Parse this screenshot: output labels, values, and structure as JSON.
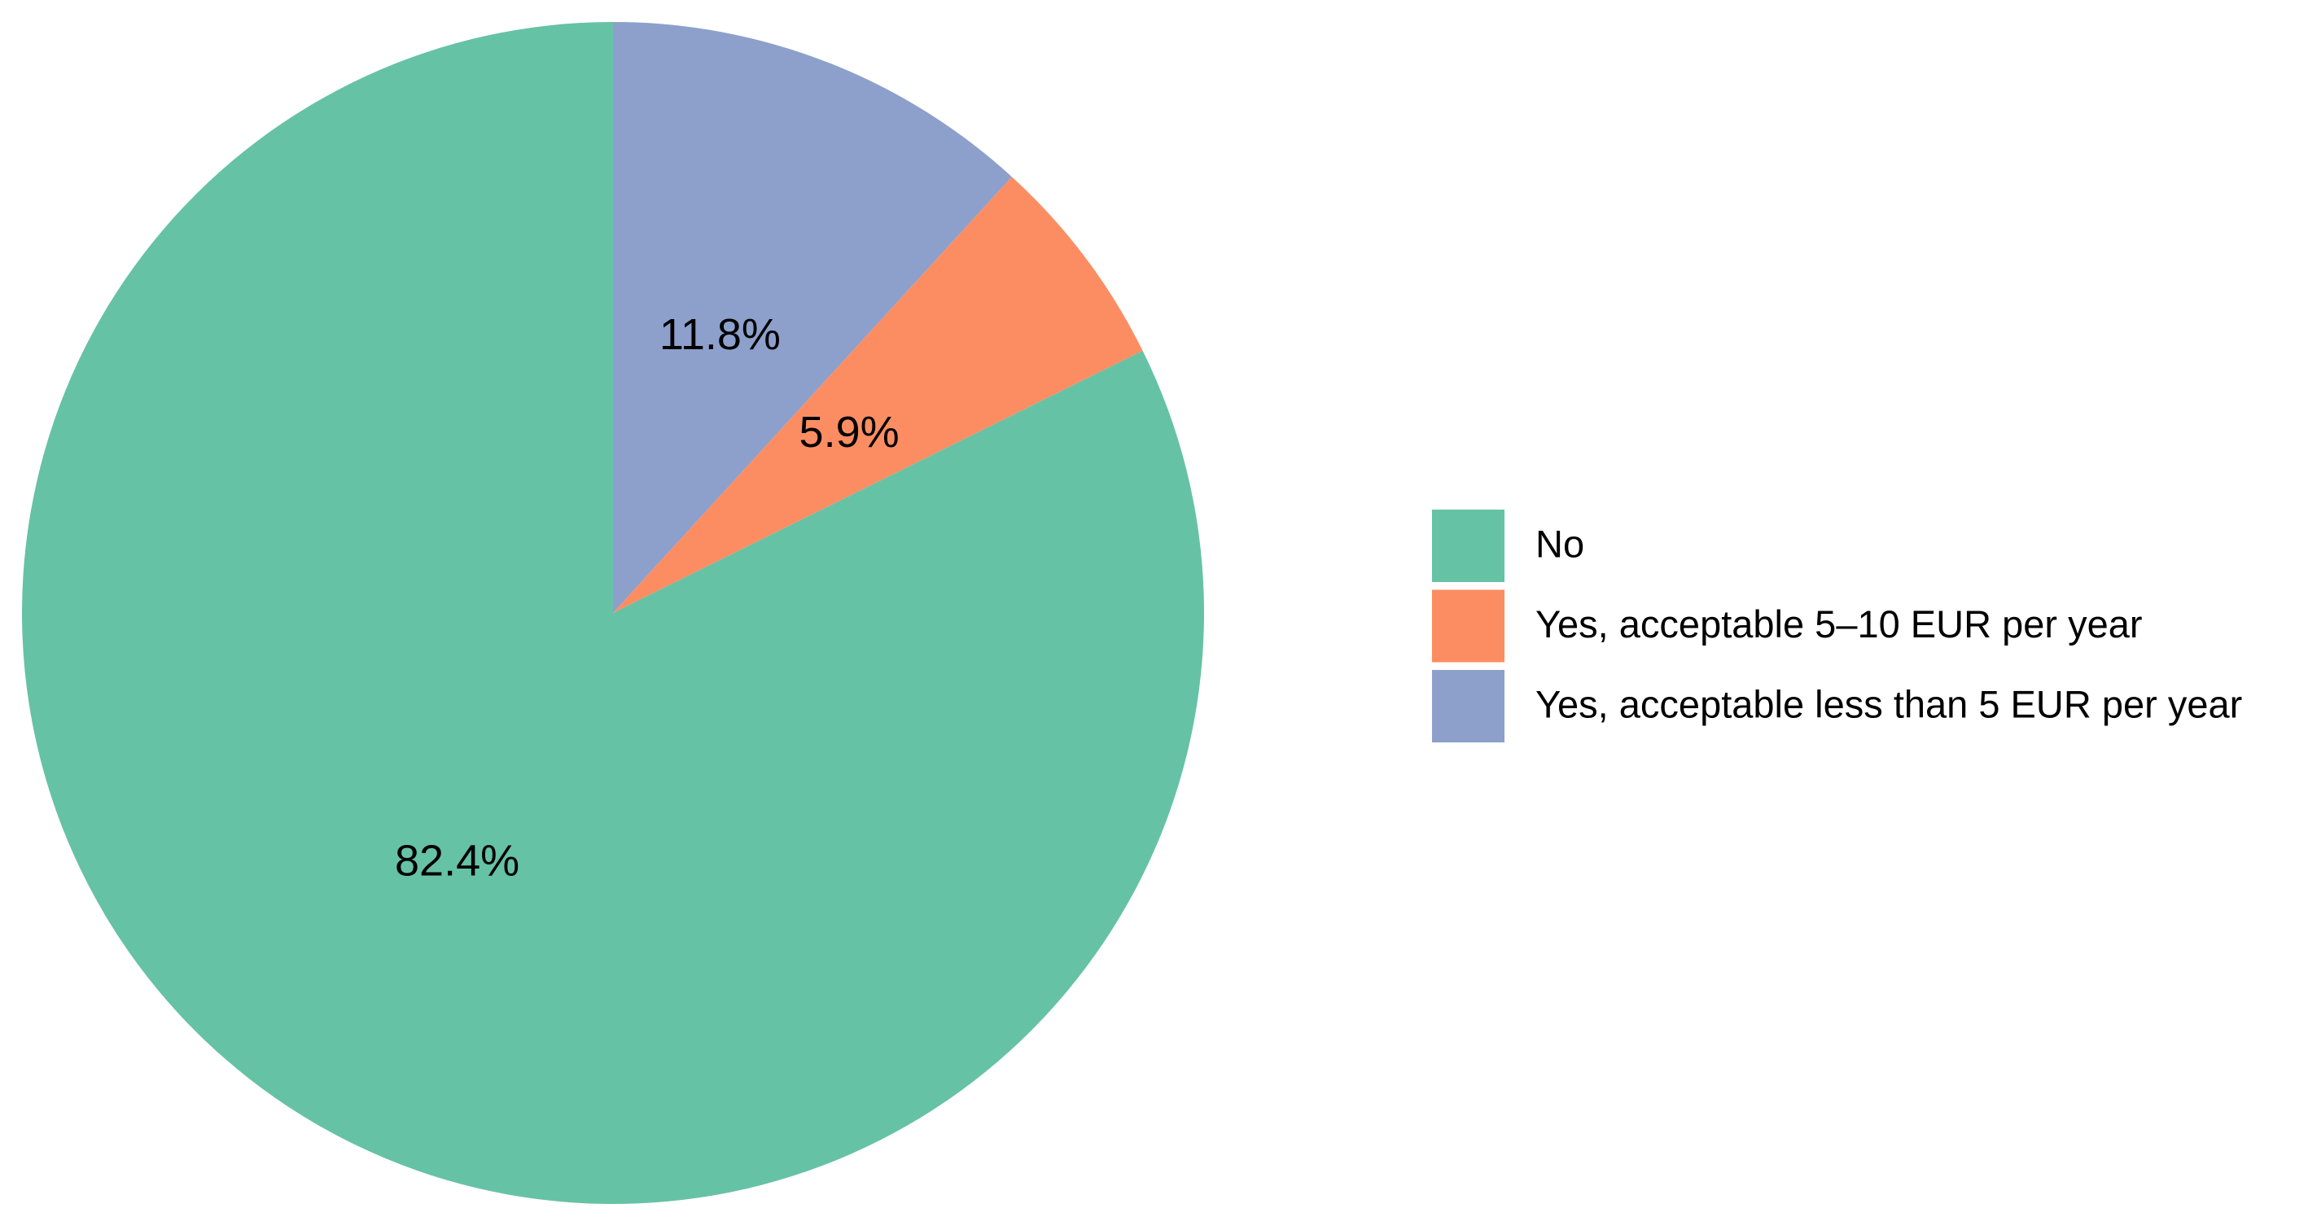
{
  "chart_data": {
    "type": "pie",
    "categories": [
      "No",
      "Yes, acceptable 5–10 EUR per year",
      "Yes, acceptable less than 5 EUR per year"
    ],
    "values": [
      82.4,
      5.9,
      11.8
    ],
    "value_labels": [
      "82.4%",
      "5.9%",
      "11.8%"
    ],
    "colors": [
      "#66c2a5",
      "#fc8d62",
      "#8da0cb"
    ],
    "legend": "right"
  }
}
